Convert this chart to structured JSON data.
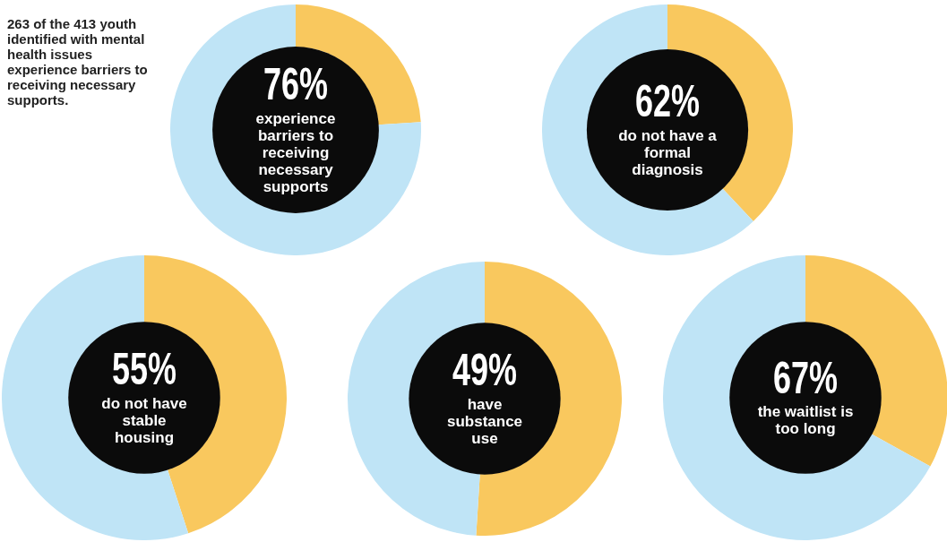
{
  "chart_data": [
    {
      "type": "other",
      "title": "263 of the 413 youth identified with mental health issues experience barriers to receiving necessary supports."
    },
    {
      "type": "donut",
      "title": "76%",
      "subtitle": "experience barriers to receiving necessary supports",
      "categories": [
        null,
        null
      ],
      "values": [
        24,
        76
      ],
      "colors": [
        "#f9c85e",
        "#bfe4f6"
      ]
    },
    {
      "type": "donut",
      "title": "62%",
      "subtitle": "do not have a formal diagnosis",
      "categories": [
        null,
        null
      ],
      "values": [
        38,
        62
      ],
      "colors": [
        "#f9c85e",
        "#bfe4f6"
      ]
    },
    {
      "type": "donut",
      "title": "55%",
      "subtitle": "do not have stable housing",
      "categories": [
        null,
        null
      ],
      "values": [
        45,
        55
      ],
      "colors": [
        "#f9c85e",
        "#bfe4f6"
      ]
    },
    {
      "type": "donut",
      "title": "49%",
      "subtitle": "have substance use",
      "categories": [
        null,
        null
      ],
      "values": [
        51,
        49
      ],
      "colors": [
        "#f9c85e",
        "#bfe4f6"
      ]
    },
    {
      "type": "donut",
      "title": "67%",
      "subtitle": "the waitlist is too long",
      "categories": [
        null,
        null
      ],
      "values": [
        33,
        67
      ],
      "colors": [
        "#f9c85e",
        "#bfe4f6"
      ]
    }
  ]
}
